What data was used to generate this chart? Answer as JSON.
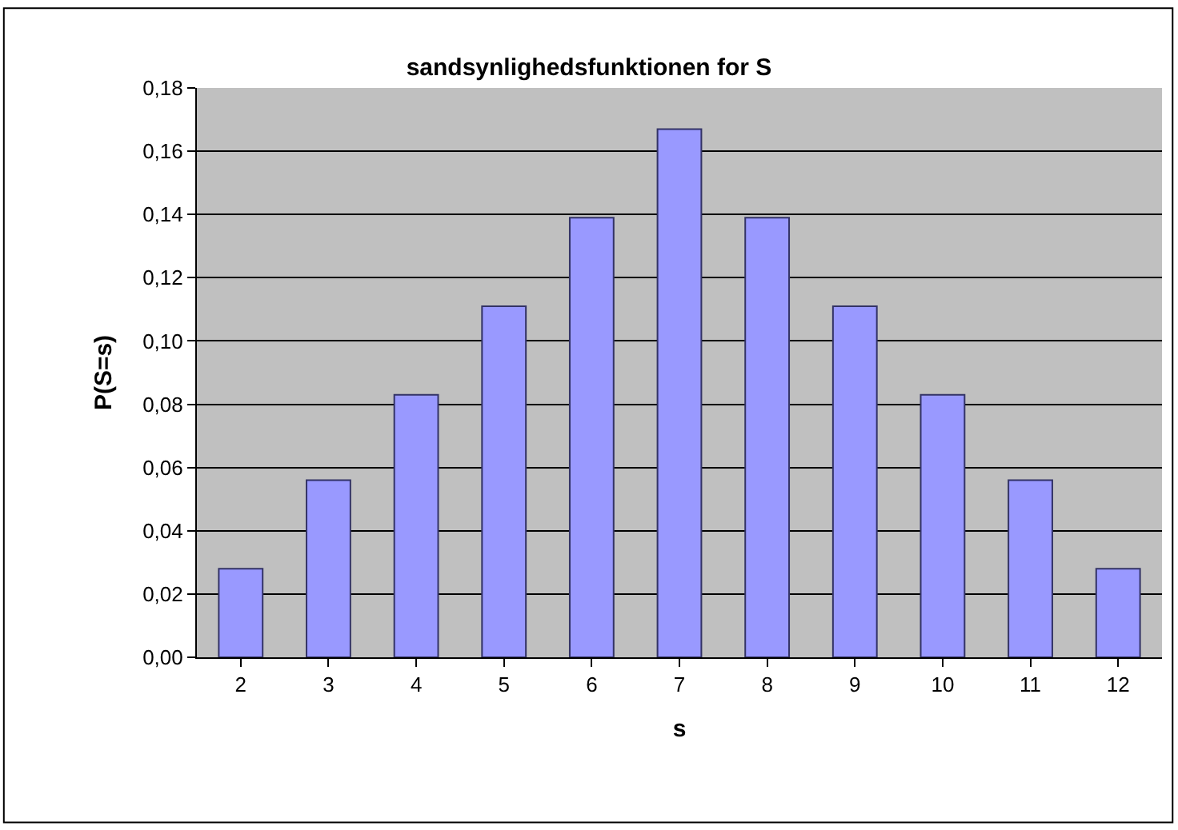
{
  "chart_data": {
    "type": "bar",
    "title": "sandsynlighedsfunktionen for S",
    "xlabel": "s",
    "ylabel": "P(S=s)",
    "categories": [
      "2",
      "3",
      "4",
      "5",
      "6",
      "7",
      "8",
      "9",
      "10",
      "11",
      "12"
    ],
    "values": [
      0.028,
      0.056,
      0.083,
      0.111,
      0.139,
      0.167,
      0.139,
      0.111,
      0.083,
      0.056,
      0.028
    ],
    "color": "#9999ff",
    "ylim": [
      0,
      0.18
    ],
    "yticks": [
      {
        "value": 0,
        "label": "0,00"
      },
      {
        "value": 0.02,
        "label": "0,02"
      },
      {
        "value": 0.04,
        "label": "0,04"
      },
      {
        "value": 0.06,
        "label": "0,06"
      },
      {
        "value": 0.08,
        "label": "0,08"
      },
      {
        "value": 0.1,
        "label": "0,10"
      },
      {
        "value": 0.12,
        "label": "0,12"
      },
      {
        "value": 0.14,
        "label": "0,14"
      },
      {
        "value": 0.16,
        "label": "0,16"
      },
      {
        "value": 0.18,
        "label": "0,18"
      }
    ],
    "grid": "y"
  }
}
